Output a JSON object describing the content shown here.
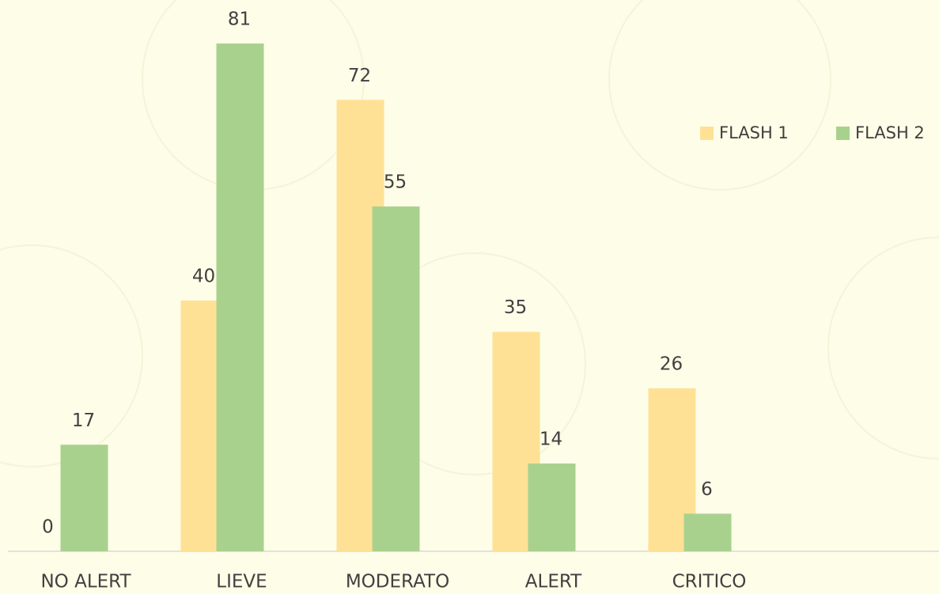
{
  "chart_data": {
    "type": "bar",
    "categories": [
      "NO ALERT",
      "LIEVE",
      "MODERATO",
      "ALERT",
      "CRITICO"
    ],
    "series": [
      {
        "name": "FLASH 1",
        "color": "#fee195",
        "values": [
          0,
          40,
          72,
          35,
          26
        ]
      },
      {
        "name": "FLASH 2",
        "color": "#a9d18e",
        "values": [
          17,
          81,
          55,
          14,
          6
        ]
      }
    ]
  }
}
